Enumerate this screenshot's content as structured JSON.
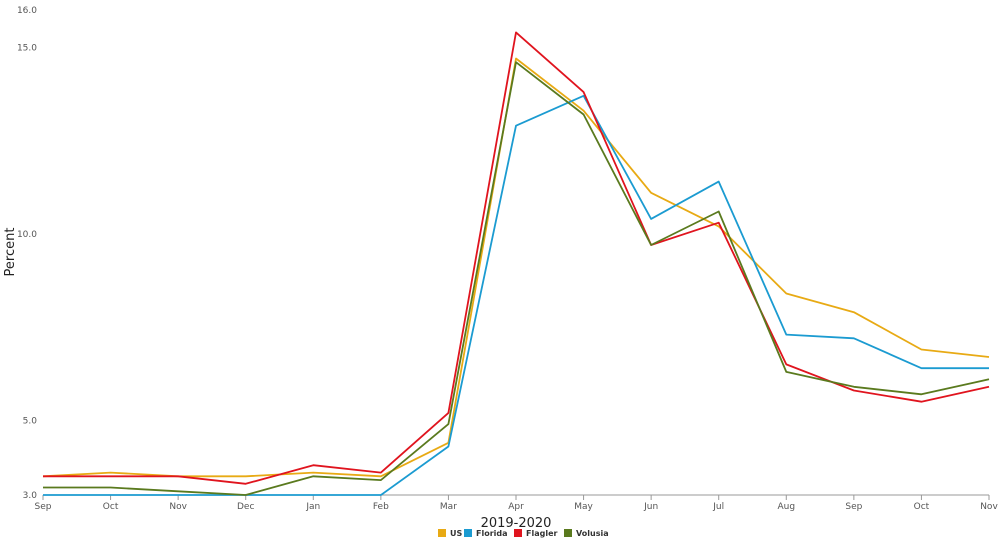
{
  "chart_data": {
    "type": "line",
    "title": "",
    "xlabel": "2019-2020",
    "ylabel": "Percent",
    "categories": [
      "Sep",
      "Oct",
      "Nov",
      "Dec",
      "Jan",
      "Feb",
      "Mar",
      "Apr",
      "May",
      "Jun",
      "Jul",
      "Aug",
      "Sep",
      "Oct",
      "Nov"
    ],
    "ylim": [
      3.0,
      16.0
    ],
    "y_ticks": [
      "3.0",
      "5.0",
      "10.0",
      "15.0",
      "16.0"
    ],
    "grid": false,
    "legend_position": "bottom",
    "series": [
      {
        "name": "US",
        "color": "#e8aa14",
        "values": [
          3.5,
          3.6,
          3.5,
          3.5,
          3.6,
          3.5,
          4.4,
          14.7,
          13.3,
          11.1,
          10.2,
          8.4,
          7.9,
          6.9,
          6.7
        ]
      },
      {
        "name": "Florida",
        "color": "#1b9bd1",
        "values": [
          3.0,
          3.0,
          3.0,
          3.0,
          3.0,
          3.0,
          4.3,
          12.9,
          13.7,
          10.4,
          11.4,
          7.3,
          7.2,
          6.4,
          6.4
        ]
      },
      {
        "name": "Flagler",
        "color": "#e0141e",
        "values": [
          3.5,
          3.5,
          3.5,
          3.3,
          3.8,
          3.6,
          5.2,
          15.4,
          13.8,
          9.7,
          10.3,
          6.5,
          5.8,
          5.5,
          5.9
        ]
      },
      {
        "name": "Volusia",
        "color": "#5a7a1e",
        "values": [
          3.2,
          3.2,
          3.1,
          3.0,
          3.5,
          3.4,
          4.9,
          14.6,
          13.2,
          9.7,
          10.6,
          6.3,
          5.9,
          5.7,
          6.1
        ]
      }
    ]
  }
}
